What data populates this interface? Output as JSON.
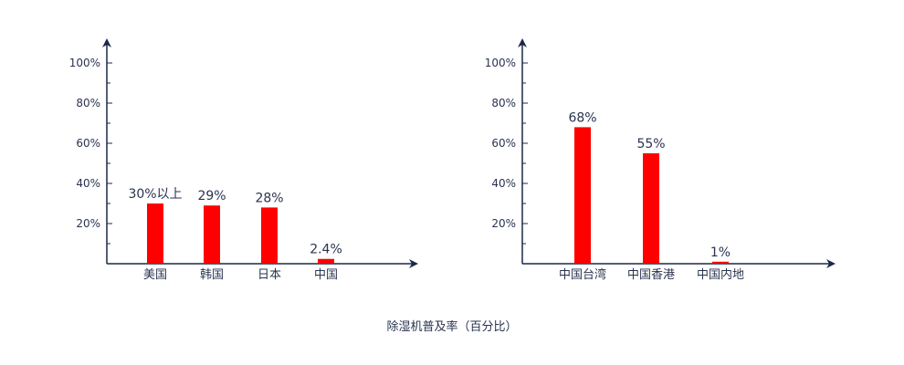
{
  "chart_data": [
    {
      "type": "bar",
      "categories": [
        "美国",
        "韩国",
        "日本",
        "中国"
      ],
      "values": [
        30,
        29,
        28,
        2.4
      ],
      "data_labels": [
        "30%以上",
        "29%",
        "28%",
        "2.4%"
      ],
      "yticks": [
        "20%",
        "40%",
        "60%",
        "80%",
        "100%"
      ],
      "ylim": [
        0,
        100
      ],
      "grid": false
    },
    {
      "type": "bar",
      "categories": [
        "中国台湾",
        "中国香港",
        "中国内地"
      ],
      "values": [
        68,
        55,
        1
      ],
      "data_labels": [
        "68%",
        "55%",
        "1%"
      ],
      "yticks": [
        "20%",
        "40%",
        "60%",
        "80%",
        "100%"
      ],
      "ylim": [
        0,
        100
      ],
      "grid": false
    }
  ],
  "caption": "除湿机普及率（百分比）",
  "colors": {
    "bar": "#ff0000",
    "axis": "#1c2848",
    "text": "#2a3350"
  }
}
